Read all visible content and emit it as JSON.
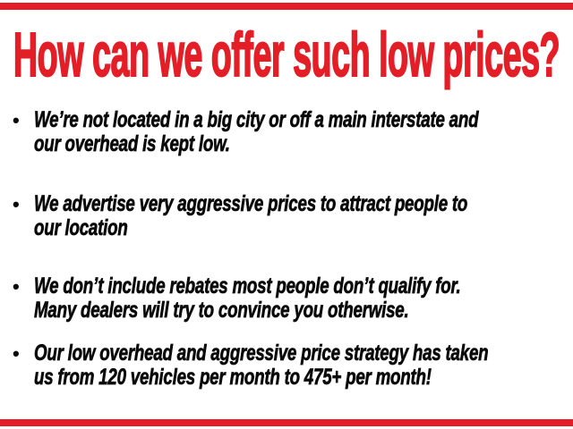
{
  "slide": {
    "title": "How can we offer such low prices?",
    "title_color": "#e31e26",
    "accent_bar_color": "#e31e26",
    "background_color": "#ffffff",
    "text_color": "#0a0a0a",
    "bullet_glyph": "•",
    "bullets": [
      {
        "lines": [
          "We’re not located in a big city or off a main interstate and",
          "our overhead is kept low."
        ]
      },
      {
        "lines": [
          "We advertise very aggressive prices to attract people to",
          "our location"
        ]
      },
      {
        "lines": [
          "We don’t include rebates most people don’t qualify for.",
          "Many dealers will try to convince you otherwise."
        ]
      },
      {
        "lines": [
          "Our low overhead and aggressive price strategy has taken",
          "us from 120 vehicles per month to 475+ per month!"
        ]
      }
    ]
  }
}
